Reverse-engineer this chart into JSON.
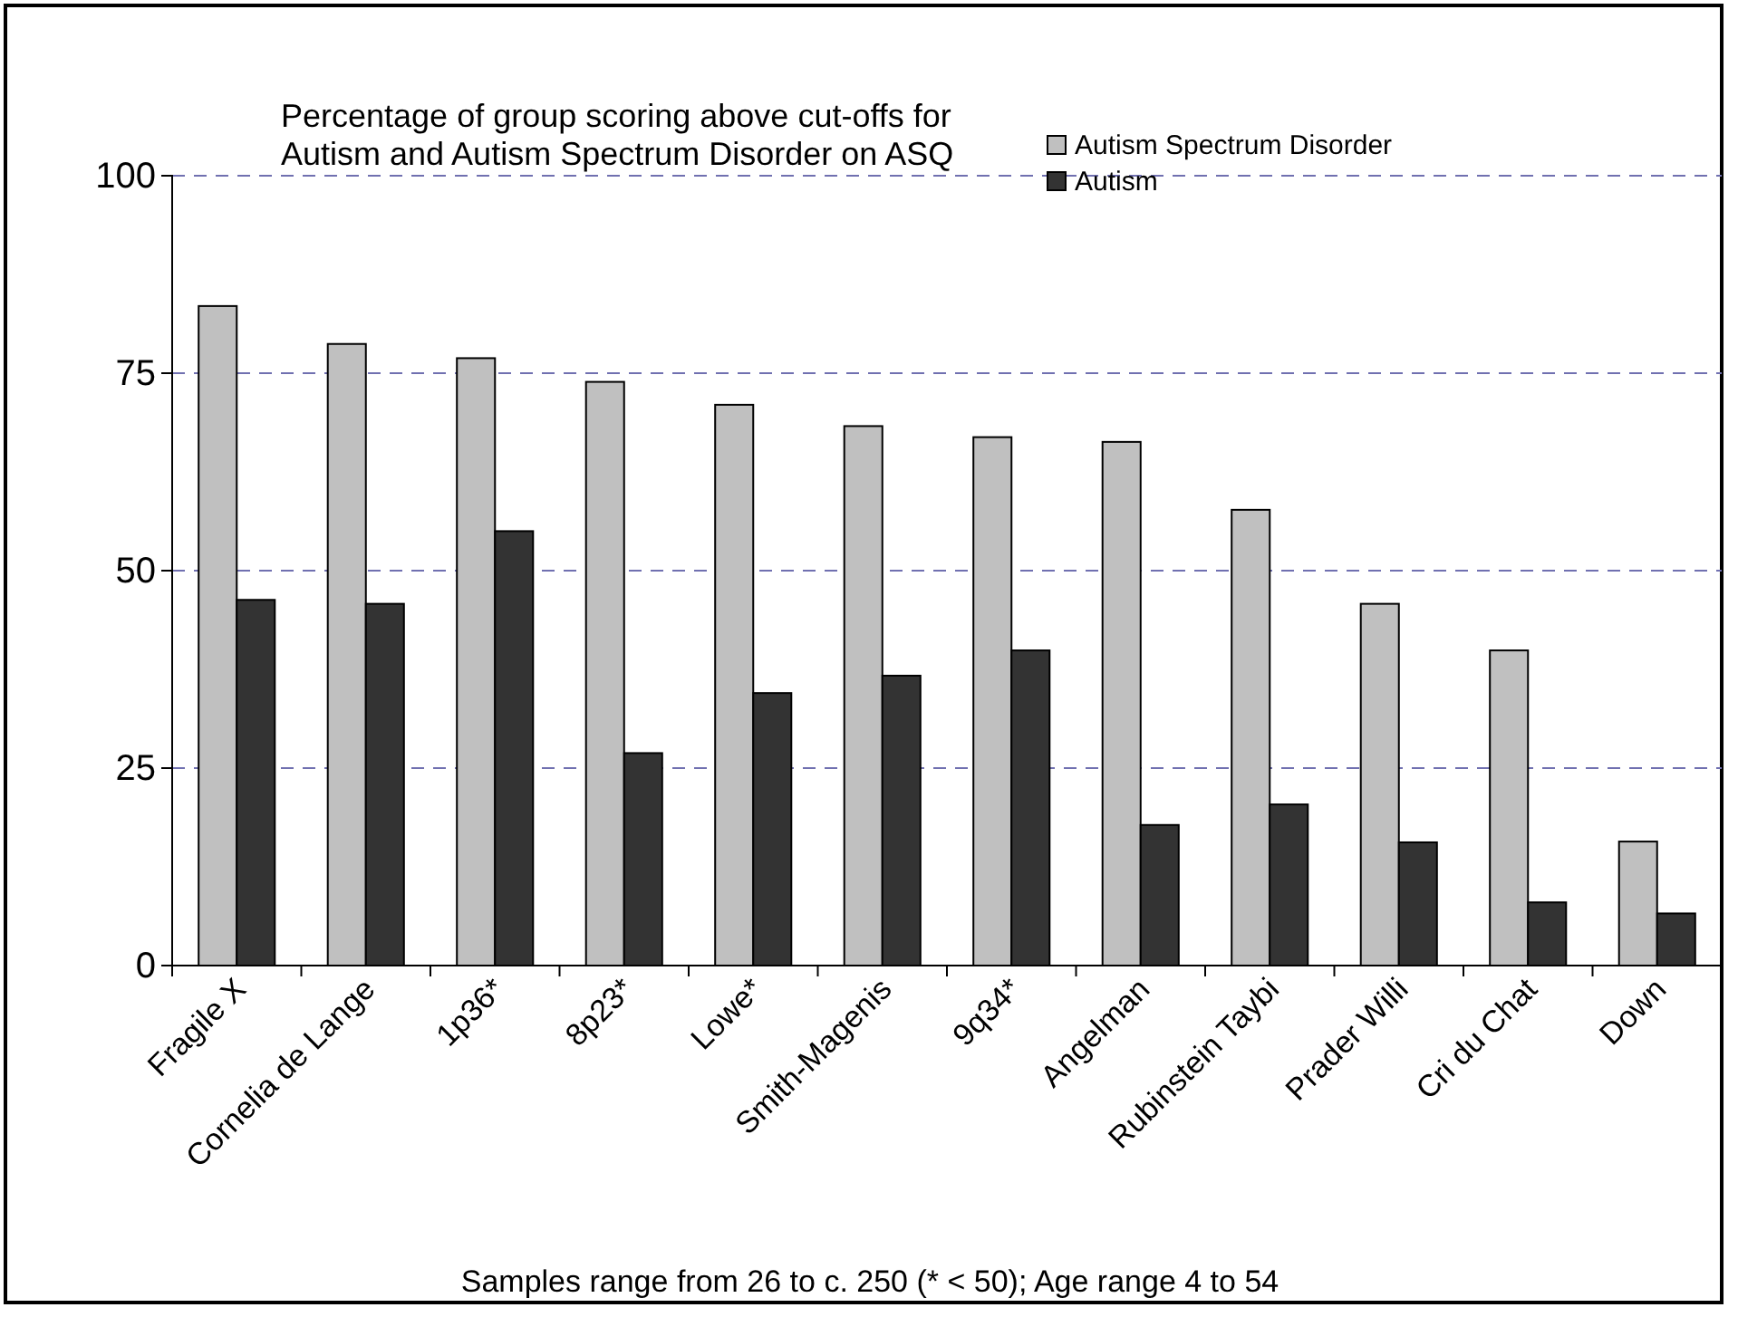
{
  "chart_data": {
    "type": "bar",
    "title": "Percentage of group scoring above cut-offs for\nAutism and Autism Spectrum Disorder on ASQ",
    "categories": [
      "Fragile X",
      "Cornelia de Lange",
      "1p36*",
      "8p23*",
      "Lowe*",
      "Smith-Magenis",
      "9q34*",
      "Angelman",
      "Rubinstein Taybi",
      "Prader Willi",
      "Cri du Chat",
      "Down"
    ],
    "series": [
      {
        "name": "Autism Spectrum Disorder",
        "color": "#c0c0c0",
        "values": [
          83.5,
          78.7,
          76.9,
          73.9,
          71.0,
          68.3,
          66.9,
          66.3,
          57.7,
          45.8,
          39.9,
          15.7
        ]
      },
      {
        "name": "Autism",
        "color": "#333333",
        "values": [
          46.3,
          45.8,
          55.0,
          26.9,
          34.5,
          36.7,
          39.9,
          17.8,
          20.4,
          15.6,
          8.0,
          6.6
        ]
      }
    ],
    "ylim": [
      0,
      100
    ],
    "yticks": [
      0,
      25,
      50,
      75,
      100
    ],
    "grid": "y",
    "legend": "top right",
    "annotations": [
      "Samples range from 26 to c. 250 (* < 50); Age range 4 to 54"
    ]
  }
}
